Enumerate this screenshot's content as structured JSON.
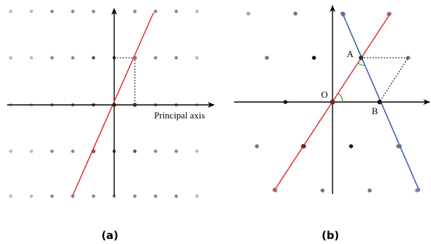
{
  "panels": [
    {
      "caption": "(a)",
      "axis_label": "Principal axis",
      "line_color": "#e03030",
      "lattice_note": "rectangular lattice, line through origin with slope 2"
    },
    {
      "caption": "(b)",
      "point_labels": {
        "origin": "O",
        "a": "A",
        "b": "B"
      },
      "red_line_color": "#e03030",
      "blue_line_color": "#3a55b0",
      "angle_color": "#2aa02a",
      "lattice_note": "oblique lattice with two lines through origin"
    }
  ]
}
